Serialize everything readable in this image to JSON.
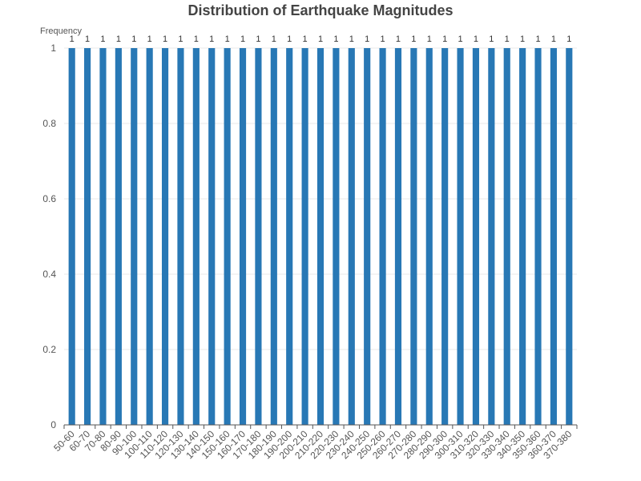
{
  "chart_data": {
    "type": "bar",
    "title": "Distribution of Earthquake Magnitudes",
    "ylabel": "Frequency",
    "xlabel": "",
    "ylim": [
      0,
      1
    ],
    "yticks": [
      "0",
      "0.2",
      "0.4",
      "0.6",
      "0.8",
      "1"
    ],
    "grid": "horizontal",
    "categories": [
      "50-60",
      "60-70",
      "70-80",
      "80-90",
      "90-100",
      "100-110",
      "110-120",
      "120-130",
      "130-140",
      "140-150",
      "150-160",
      "160-170",
      "170-180",
      "180-190",
      "190-200",
      "200-210",
      "210-220",
      "220-230",
      "230-240",
      "240-250",
      "250-260",
      "260-270",
      "270-280",
      "280-290",
      "290-300",
      "300-310",
      "310-320",
      "320-330",
      "330-340",
      "340-350",
      "350-360",
      "360-370",
      "370-380"
    ],
    "values": [
      1,
      1,
      1,
      1,
      1,
      1,
      1,
      1,
      1,
      1,
      1,
      1,
      1,
      1,
      1,
      1,
      1,
      1,
      1,
      1,
      1,
      1,
      1,
      1,
      1,
      1,
      1,
      1,
      1,
      1,
      1,
      1,
      1
    ],
    "data_labels": [
      "1",
      "1",
      "1",
      "1",
      "1",
      "1",
      "1",
      "1",
      "1",
      "1",
      "1",
      "1",
      "1",
      "1",
      "1",
      "1",
      "1",
      "1",
      "1",
      "1",
      "1",
      "1",
      "1",
      "1",
      "1",
      "1",
      "1",
      "1",
      "1",
      "1",
      "1",
      "1",
      "1"
    ],
    "colors": {
      "bar": "#2878b5",
      "grid": "#e8e8e8",
      "axis": "#555555"
    }
  }
}
